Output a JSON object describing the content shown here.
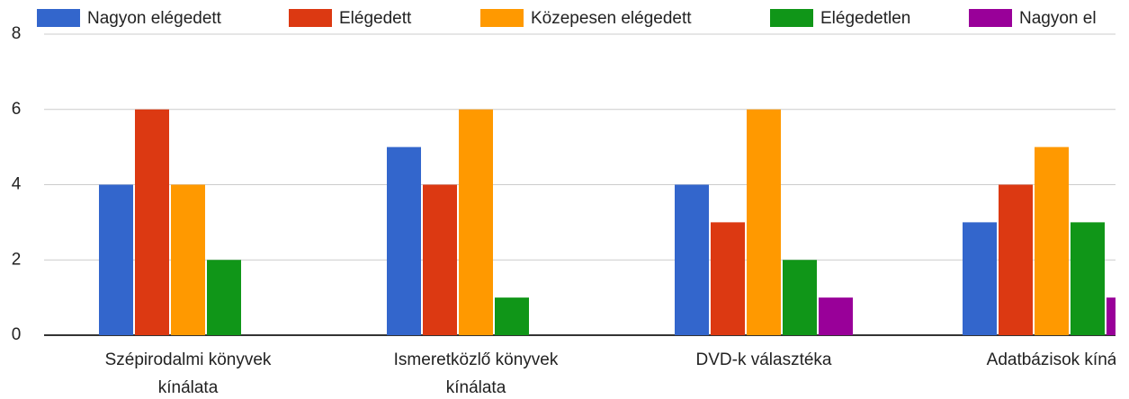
{
  "chart_data": {
    "type": "bar",
    "categories": [
      "Szépirodalmi könyvek kínálata",
      "Ismeretközlő könyvek kínálata",
      "DVD-k választéka",
      "Adatbázisok kíná"
    ],
    "series": [
      {
        "name": "Nagyon elégedett",
        "color": "#3366cc",
        "values": [
          4,
          5,
          4,
          3
        ]
      },
      {
        "name": "Elégedett",
        "color": "#dc3912",
        "values": [
          6,
          4,
          3,
          4
        ]
      },
      {
        "name": "Közepesen elégedett",
        "color": "#ff9900",
        "values": [
          4,
          6,
          6,
          5
        ]
      },
      {
        "name": "Elégedetlen",
        "color": "#109618",
        "values": [
          2,
          1,
          2,
          3
        ]
      },
      {
        "name": "Nagyon el",
        "color": "#990099",
        "values": [
          0,
          0,
          1,
          1
        ]
      }
    ],
    "ylim": [
      0,
      8
    ],
    "yticks": [
      0,
      2,
      4,
      6,
      8
    ],
    "grid": true,
    "legend": "top"
  }
}
